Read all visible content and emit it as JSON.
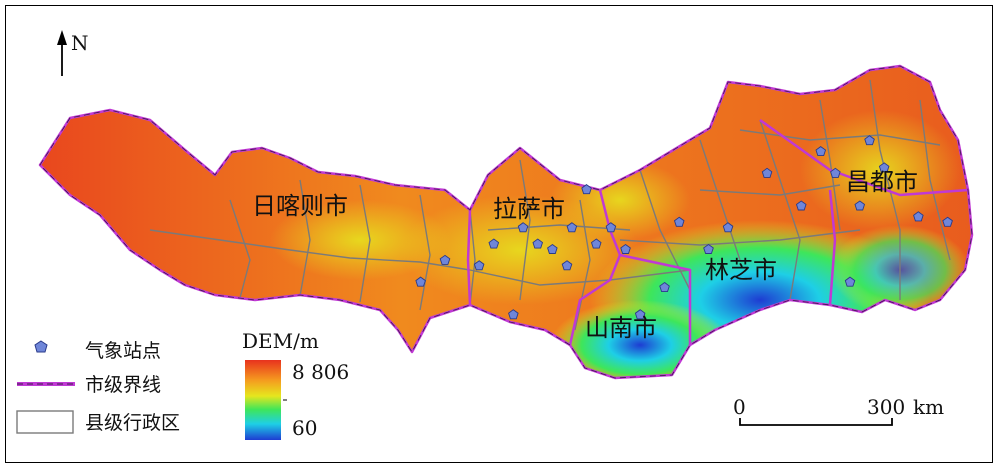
{
  "map": {
    "north_label": "N",
    "city_labels": {
      "rikaze": "日喀则市",
      "lasa": "拉萨市",
      "changdu": "昌都市",
      "linzhi": "林芝市",
      "shannan": "山南市"
    },
    "stations": [
      {
        "lon": 90.1,
        "lat": 29.6
      },
      {
        "lon": 89.5,
        "lat": 29.3
      },
      {
        "lon": 88.5,
        "lat": 29.0
      },
      {
        "lon": 88.0,
        "lat": 28.6
      },
      {
        "lon": 89.2,
        "lat": 28.9
      },
      {
        "lon": 89.9,
        "lat": 28.0
      },
      {
        "lon": 90.4,
        "lat": 29.3
      },
      {
        "lon": 91.1,
        "lat": 29.6
      },
      {
        "lon": 91.4,
        "lat": 30.3
      },
      {
        "lon": 90.7,
        "lat": 29.2
      },
      {
        "lon": 91.0,
        "lat": 28.9
      },
      {
        "lon": 91.6,
        "lat": 29.3
      },
      {
        "lon": 91.9,
        "lat": 29.6
      },
      {
        "lon": 92.2,
        "lat": 29.2
      },
      {
        "lon": 93.3,
        "lat": 29.7
      },
      {
        "lon": 93.0,
        "lat": 28.5
      },
      {
        "lon": 92.5,
        "lat": 28.0
      },
      {
        "lon": 94.3,
        "lat": 29.6
      },
      {
        "lon": 95.8,
        "lat": 30.0
      },
      {
        "lon": 93.9,
        "lat": 29.2
      },
      {
        "lon": 95.1,
        "lat": 30.6
      },
      {
        "lon": 96.2,
        "lat": 31.0
      },
      {
        "lon": 97.2,
        "lat": 31.2
      },
      {
        "lon": 97.5,
        "lat": 30.7
      },
      {
        "lon": 97.0,
        "lat": 30.0
      },
      {
        "lon": 98.2,
        "lat": 29.8
      },
      {
        "lon": 98.8,
        "lat": 29.7
      },
      {
        "lon": 96.5,
        "lat": 30.6
      },
      {
        "lon": 96.8,
        "lat": 28.6
      }
    ]
  },
  "legend": {
    "station_label": "气象站点",
    "city_boundary_label": "市级界线",
    "county_label": "县级行政区",
    "dem_title": "DEM/m",
    "dem_max": "8 806",
    "dem_min": "60",
    "colors": {
      "high": "#e8321e",
      "orange": "#f59a1f",
      "yellow": "#e6e61e",
      "green": "#3ee65a",
      "cyan": "#1ecfe6",
      "low": "#1e3cd2",
      "city_line": "#c039d4",
      "county_line": "#7a7a7a",
      "station_fill": "#6f86d9"
    }
  },
  "scale": {
    "start": "0",
    "end": "300",
    "unit": "km"
  }
}
